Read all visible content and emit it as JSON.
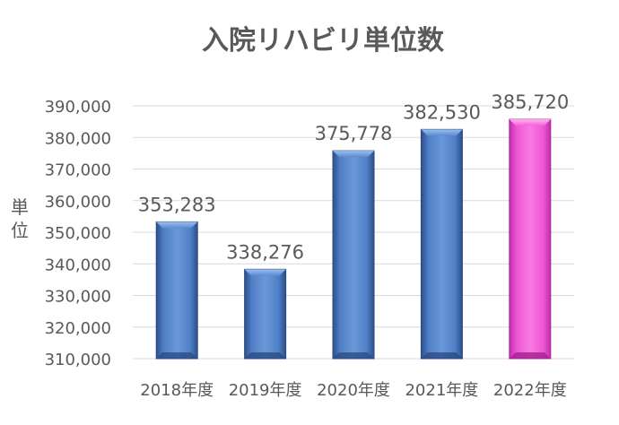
{
  "chart_data": {
    "type": "bar",
    "title": "入院リハビリ単位数",
    "ylabel": "単位",
    "xlabel": "",
    "categories": [
      "2018年度",
      "2019年度",
      "2020年度",
      "2021年度",
      "2022年度"
    ],
    "values": [
      353283,
      338276,
      375778,
      382530,
      385720
    ],
    "value_labels": [
      "353,283",
      "338,276",
      "375,778",
      "382,530",
      "385,720"
    ],
    "ylim": [
      310000,
      390000
    ],
    "y_ticks": [
      "310,000",
      "320,000",
      "330,000",
      "340,000",
      "350,000",
      "360,000",
      "370,000",
      "380,000",
      "390,000"
    ],
    "grid": true,
    "legend": "none",
    "colors": {
      "bar": "#4a78c0",
      "highlight_bar": "#f055d6",
      "gridline": "#d9d9d9",
      "text": "#595959",
      "title": "#595959"
    }
  }
}
